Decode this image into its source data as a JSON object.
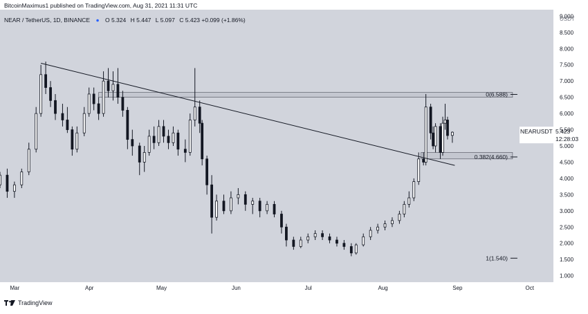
{
  "header": {
    "published": "BitcoinMaximus1 published on TradingView.com, Aug 31, 2021 11:31 UTC",
    "symbol_line": "NEAR / TetherUS, 1D, BINANCE",
    "o_label": "O",
    "o_value": "5.324",
    "h_label": "H",
    "h_value": "5.447",
    "l_label": "L",
    "l_value": "5.097",
    "c_label": "C",
    "c_value": "5.423 +0.099 (+1.86%)"
  },
  "footer": {
    "brand": "TradingView"
  },
  "price_tag": {
    "symbol": "NEARUSDT",
    "price": "5.423",
    "countdown": "12:28:03",
    "value": 5.423
  },
  "colors": {
    "plot_bg": "#d1d4dc",
    "page_bg": "#ffffff",
    "candle": "#131722",
    "line": "#131722",
    "zone_fill": "#c4c7d0",
    "zone_stroke": "#5d606b"
  },
  "chart_data": {
    "type": "candlestick",
    "x_tick_labels": [
      "Mar",
      "Apr",
      "May",
      "Jun",
      "Jul",
      "Aug",
      "Sep",
      "Oct"
    ],
    "y_unit": "USDT",
    "y_tick_labels": [
      "9.000",
      "8.500",
      "8.000",
      "7.500",
      "7.000",
      "6.500",
      "6.000",
      "5.500",
      "5.000",
      "4.500",
      "4.000",
      "3.500",
      "3.000",
      "2.500",
      "2.000",
      "1.500",
      "1.000"
    ],
    "y_ticks": [
      9.0,
      8.5,
      8.0,
      7.5,
      7.0,
      6.5,
      6.0,
      5.5,
      5.0,
      4.5,
      4.0,
      3.5,
      3.0,
      2.5,
      2.0,
      1.5,
      1.0
    ],
    "x_ticks": [
      "2021-03-01",
      "2021-04-01",
      "2021-05-01",
      "2021-06-01",
      "2021-07-01",
      "2021-08-01",
      "2021-09-01",
      "2021-10-01"
    ],
    "ylim": [
      0.8,
      9.2
    ],
    "xlim": [
      "2021-02-24",
      "2021-10-12"
    ],
    "grid": false,
    "candles": [
      [
        "2021-02-24",
        3.8,
        4.2,
        3.7,
        4.1
      ],
      [
        "2021-02-27",
        4.1,
        4.3,
        3.4,
        3.6
      ],
      [
        "2021-03-02",
        3.6,
        3.9,
        3.4,
        3.8
      ],
      [
        "2021-03-05",
        3.8,
        4.3,
        3.7,
        4.2
      ],
      [
        "2021-03-08",
        4.2,
        5.1,
        4.1,
        4.9
      ],
      [
        "2021-03-11",
        4.9,
        6.2,
        4.8,
        6.0
      ],
      [
        "2021-03-13",
        6.0,
        7.5,
        5.9,
        7.2
      ],
      [
        "2021-03-15",
        7.2,
        7.6,
        6.6,
        6.8
      ],
      [
        "2021-03-17",
        6.8,
        7.0,
        6.2,
        6.4
      ],
      [
        "2021-03-19",
        6.4,
        6.6,
        5.8,
        6.0
      ],
      [
        "2021-03-22",
        6.0,
        6.3,
        5.6,
        5.8
      ],
      [
        "2021-03-24",
        5.8,
        6.2,
        5.4,
        5.5
      ],
      [
        "2021-03-26",
        5.5,
        5.6,
        4.7,
        4.9
      ],
      [
        "2021-03-28",
        4.9,
        5.6,
        4.8,
        5.4
      ],
      [
        "2021-03-31",
        5.4,
        6.2,
        5.3,
        6.0
      ],
      [
        "2021-04-02",
        6.0,
        6.8,
        5.9,
        6.6
      ],
      [
        "2021-04-04",
        6.6,
        6.8,
        6.1,
        6.3
      ],
      [
        "2021-04-06",
        6.3,
        6.5,
        5.8,
        6.0
      ],
      [
        "2021-04-08",
        6.0,
        7.3,
        5.9,
        7.0
      ],
      [
        "2021-04-10",
        7.0,
        7.4,
        6.5,
        6.7
      ],
      [
        "2021-04-12",
        6.7,
        7.3,
        6.4,
        6.9
      ],
      [
        "2021-04-14",
        6.9,
        7.4,
        6.3,
        6.5
      ],
      [
        "2021-04-16",
        6.5,
        6.7,
        5.9,
        6.1
      ],
      [
        "2021-04-18",
        6.1,
        6.2,
        4.9,
        5.2
      ],
      [
        "2021-04-20",
        5.2,
        5.5,
        4.7,
        5.0
      ],
      [
        "2021-04-23",
        5.0,
        5.1,
        4.1,
        4.5
      ],
      [
        "2021-04-25",
        4.5,
        5.0,
        4.2,
        4.8
      ],
      [
        "2021-04-27",
        4.8,
        5.5,
        4.7,
        5.3
      ],
      [
        "2021-04-29",
        5.3,
        5.6,
        4.9,
        5.1
      ],
      [
        "2021-05-01",
        5.1,
        5.8,
        5.0,
        5.6
      ],
      [
        "2021-05-03",
        5.6,
        5.8,
        5.1,
        5.3
      ],
      [
        "2021-05-05",
        5.3,
        5.5,
        4.9,
        5.1
      ],
      [
        "2021-05-07",
        5.1,
        5.6,
        5.0,
        5.4
      ],
      [
        "2021-05-09",
        5.4,
        5.5,
        4.7,
        4.9
      ],
      [
        "2021-05-12",
        4.9,
        5.2,
        4.5,
        4.8
      ],
      [
        "2021-05-14",
        4.8,
        6.0,
        4.7,
        5.8
      ],
      [
        "2021-05-16",
        5.8,
        7.4,
        5.6,
        6.2
      ],
      [
        "2021-05-18",
        6.2,
        6.4,
        5.4,
        5.7
      ],
      [
        "2021-05-19",
        5.7,
        5.8,
        4.4,
        4.6
      ],
      [
        "2021-05-21",
        4.6,
        4.7,
        3.5,
        3.8
      ],
      [
        "2021-05-23",
        3.8,
        4.1,
        2.3,
        2.8
      ],
      [
        "2021-05-25",
        2.8,
        3.5,
        2.7,
        3.3
      ],
      [
        "2021-05-28",
        3.3,
        3.5,
        2.9,
        3.0
      ],
      [
        "2021-05-31",
        3.0,
        3.6,
        2.9,
        3.4
      ],
      [
        "2021-06-03",
        3.4,
        3.7,
        3.2,
        3.5
      ],
      [
        "2021-06-06",
        3.5,
        3.6,
        3.0,
        3.2
      ],
      [
        "2021-06-09",
        3.2,
        3.4,
        2.9,
        3.3
      ],
      [
        "2021-06-12",
        3.3,
        3.4,
        2.8,
        3.0
      ],
      [
        "2021-06-15",
        3.0,
        3.3,
        2.9,
        3.2
      ],
      [
        "2021-06-18",
        3.2,
        3.3,
        2.8,
        2.9
      ],
      [
        "2021-06-21",
        2.9,
        3.0,
        2.3,
        2.5
      ],
      [
        "2021-06-23",
        2.5,
        2.6,
        1.9,
        2.1
      ],
      [
        "2021-06-26",
        2.1,
        2.2,
        1.8,
        1.9
      ],
      [
        "2021-06-29",
        1.9,
        2.2,
        1.85,
        2.1
      ],
      [
        "2021-07-02",
        2.1,
        2.3,
        2.0,
        2.2
      ],
      [
        "2021-07-05",
        2.2,
        2.4,
        2.1,
        2.3
      ],
      [
        "2021-07-08",
        2.3,
        2.4,
        2.1,
        2.2
      ],
      [
        "2021-07-11",
        2.2,
        2.3,
        2.0,
        2.1
      ],
      [
        "2021-07-14",
        2.1,
        2.2,
        1.9,
        2.0
      ],
      [
        "2021-07-17",
        2.0,
        2.1,
        1.8,
        1.9
      ],
      [
        "2021-07-20",
        1.9,
        2.0,
        1.6,
        1.7
      ],
      [
        "2021-07-22",
        1.7,
        2.0,
        1.65,
        1.95
      ],
      [
        "2021-07-25",
        1.95,
        2.3,
        1.9,
        2.2
      ],
      [
        "2021-07-28",
        2.2,
        2.5,
        2.1,
        2.4
      ],
      [
        "2021-07-31",
        2.4,
        2.6,
        2.3,
        2.5
      ],
      [
        "2021-08-03",
        2.5,
        2.7,
        2.4,
        2.6
      ],
      [
        "2021-08-06",
        2.6,
        2.8,
        2.5,
        2.7
      ],
      [
        "2021-08-09",
        2.7,
        3.0,
        2.6,
        2.9
      ],
      [
        "2021-08-11",
        2.9,
        3.3,
        2.8,
        3.2
      ],
      [
        "2021-08-13",
        3.2,
        3.6,
        3.1,
        3.4
      ],
      [
        "2021-08-15",
        3.4,
        4.0,
        3.3,
        3.9
      ],
      [
        "2021-08-17",
        3.9,
        4.8,
        3.8,
        4.6
      ],
      [
        "2021-08-19",
        4.6,
        4.8,
        4.4,
        4.5
      ],
      [
        "2021-08-20",
        4.5,
        6.6,
        4.4,
        6.2
      ],
      [
        "2021-08-22",
        6.2,
        6.3,
        5.2,
        5.4
      ],
      [
        "2021-08-23",
        5.4,
        5.6,
        4.9,
        5.0
      ],
      [
        "2021-08-24",
        5.0,
        5.7,
        4.8,
        5.6
      ],
      [
        "2021-08-26",
        5.6,
        5.7,
        4.6,
        4.8
      ],
      [
        "2021-08-27",
        4.8,
        5.9,
        4.7,
        5.7
      ],
      [
        "2021-08-28",
        5.7,
        6.3,
        5.5,
        5.8
      ],
      [
        "2021-08-29",
        5.8,
        5.9,
        5.2,
        5.32
      ],
      [
        "2021-08-31",
        5.324,
        5.447,
        5.097,
        5.423
      ]
    ],
    "trendline": {
      "start": [
        "2021-03-13",
        7.55
      ],
      "end": [
        "2021-09-01",
        4.4
      ]
    },
    "fib_levels": [
      {
        "label": "0(6.588)",
        "ratio": 0,
        "value": 6.588
      },
      {
        "label": "0.382(4.660)",
        "ratio": 0.382,
        "value": 4.66
      },
      {
        "label": "1(1.540)",
        "ratio": 1,
        "value": 1.54
      }
    ],
    "zones": [
      {
        "from": "2021-04-06",
        "to": "2021-09-25",
        "low": 6.5,
        "high": 6.65
      },
      {
        "from": "2021-08-18",
        "to": "2021-09-25",
        "low": 4.6,
        "high": 4.8
      }
    ]
  }
}
